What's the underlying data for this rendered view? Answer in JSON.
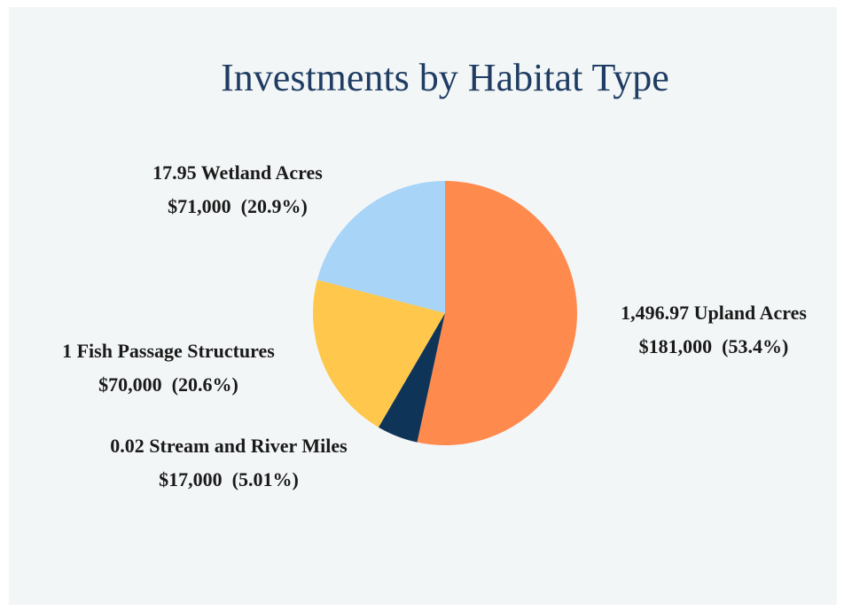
{
  "chart_data": {
    "type": "pie",
    "title": "Investments by Habitat Type",
    "categories": [
      "1,496.97 Upland Acres",
      "0.02 Stream and River Miles",
      "1 Fish Passage Structures",
      "17.95 Wetland Acres"
    ],
    "values": [
      181000,
      17000,
      70000,
      71000
    ],
    "value_labels": [
      "$181,000  (53.4%)",
      "$17,000  (5.01%)",
      "$70,000  (20.6%)",
      "$71,000  (20.9%)"
    ],
    "colors": [
      "#ff8a4e",
      "#0e3558",
      "#ffc74b",
      "#a8d4f8"
    ]
  }
}
